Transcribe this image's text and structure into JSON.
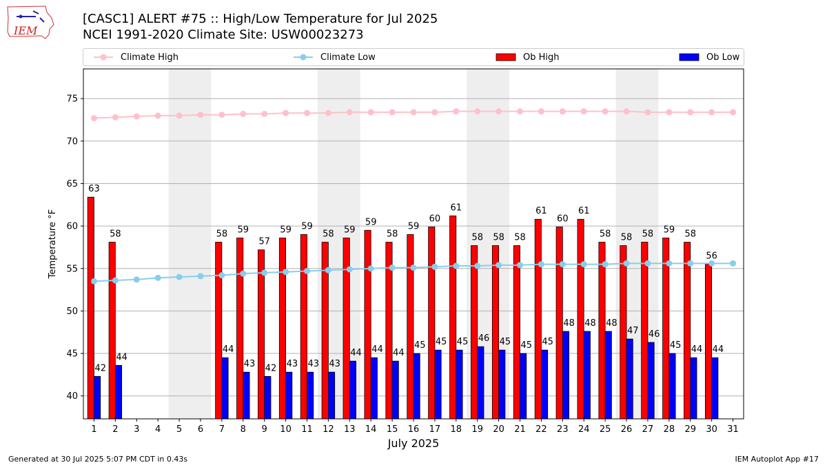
{
  "header": {
    "title_line1": "[CASC1] ALERT #75 :: High/Low Temperature for Jul 2025",
    "title_line2": "NCEI 1991-2020 Climate Site: USW00023273",
    "logo_text": "IEM"
  },
  "footer": {
    "left": "Generated at 30 Jul 2025 5:07 PM CDT in 0.43s",
    "right": "IEM Autoplot App #17"
  },
  "legend": [
    {
      "label": "Climate High",
      "kind": "line",
      "color": "#ffc0cb"
    },
    {
      "label": "Climate Low",
      "kind": "line",
      "color": "#87ceeb"
    },
    {
      "label": "Ob High",
      "kind": "bar",
      "color": "#ff0000"
    },
    {
      "label": "Ob Low",
      "kind": "bar",
      "color": "#0000ff"
    }
  ],
  "chart_data": {
    "type": "bar",
    "xlabel": "July 2025",
    "ylabel": "Temperature °F",
    "ylim": [
      37.3,
      78.5
    ],
    "xlim": [
      0.5,
      31.5
    ],
    "yticks": [
      40,
      45,
      50,
      55,
      60,
      65,
      70,
      75
    ],
    "x": [
      1,
      2,
      3,
      4,
      5,
      6,
      7,
      8,
      9,
      10,
      11,
      12,
      13,
      14,
      15,
      16,
      17,
      18,
      19,
      20,
      21,
      22,
      23,
      24,
      25,
      26,
      27,
      28,
      29,
      30,
      31
    ],
    "weekend_days": [
      5,
      6,
      12,
      13,
      19,
      20,
      26,
      27
    ],
    "grid": "horizontal",
    "legend_position": "top",
    "series": [
      {
        "name": "Ob High",
        "type": "bar",
        "color": "#ff0000",
        "values": [
          63.4,
          58.1,
          null,
          null,
          null,
          null,
          58.1,
          58.6,
          57.2,
          58.6,
          59.0,
          58.1,
          58.6,
          59.5,
          58.1,
          59.0,
          59.9,
          61.2,
          57.7,
          57.7,
          57.7,
          60.8,
          59.9,
          60.8,
          58.1,
          57.7,
          58.1,
          58.6,
          58.1,
          55.5,
          null
        ],
        "labels": [
          "63",
          "58",
          "",
          "",
          "",
          "",
          "58",
          "59",
          "57",
          "59",
          "59",
          "58",
          "59",
          "59",
          "58",
          "59",
          "60",
          "61",
          "58",
          "58",
          "58",
          "61",
          "60",
          "61",
          "58",
          "58",
          "58",
          "59",
          "58",
          "56",
          ""
        ]
      },
      {
        "name": "Ob Low",
        "type": "bar",
        "color": "#0000ff",
        "values": [
          42.3,
          43.6,
          null,
          null,
          null,
          null,
          44.5,
          42.8,
          42.3,
          42.8,
          42.8,
          42.8,
          44.1,
          44.5,
          44.1,
          45.0,
          45.4,
          45.4,
          45.8,
          45.4,
          45.0,
          45.4,
          47.6,
          47.6,
          47.6,
          46.7,
          46.3,
          45.0,
          44.5,
          44.5,
          null
        ],
        "labels": [
          "42",
          "44",
          "",
          "",
          "",
          "",
          "44",
          "43",
          "42",
          "43",
          "43",
          "43",
          "44",
          "44",
          "44",
          "45",
          "45",
          "45",
          "46",
          "45",
          "45",
          "45",
          "48",
          "48",
          "48",
          "47",
          "46",
          "45",
          "44",
          "44",
          ""
        ]
      },
      {
        "name": "Climate High",
        "type": "line",
        "color": "#ffc0cb",
        "values": [
          72.7,
          72.8,
          72.9,
          73.0,
          73.0,
          73.1,
          73.1,
          73.2,
          73.2,
          73.3,
          73.3,
          73.3,
          73.4,
          73.4,
          73.4,
          73.4,
          73.4,
          73.5,
          73.5,
          73.5,
          73.5,
          73.5,
          73.5,
          73.5,
          73.5,
          73.5,
          73.4,
          73.4,
          73.4,
          73.4,
          73.4
        ]
      },
      {
        "name": "Climate Low",
        "type": "line",
        "color": "#87ceeb",
        "values": [
          53.5,
          53.6,
          53.7,
          53.9,
          54.0,
          54.1,
          54.2,
          54.4,
          54.5,
          54.6,
          54.7,
          54.8,
          54.9,
          55.0,
          55.1,
          55.1,
          55.2,
          55.3,
          55.3,
          55.4,
          55.4,
          55.5,
          55.5,
          55.5,
          55.5,
          55.6,
          55.6,
          55.6,
          55.6,
          55.6,
          55.6
        ]
      }
    ]
  }
}
